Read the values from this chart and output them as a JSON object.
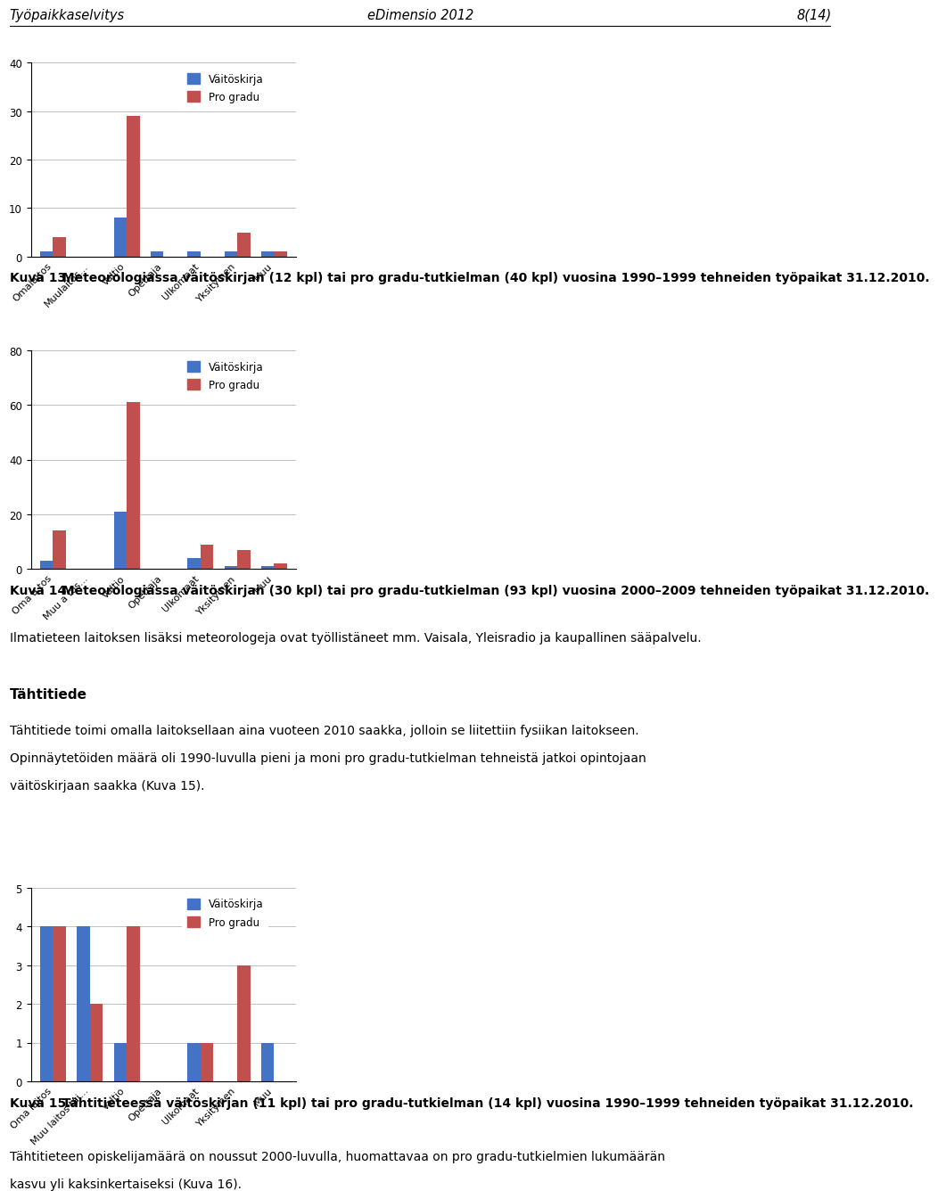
{
  "header_left": "Työpaikkaselvitys",
  "header_center": "eDimensio 2012",
  "header_right": "8(14)",
  "chart1": {
    "categories": [
      "Omalaitos",
      "Muulaitos...",
      "Valtio",
      "Opettaja",
      "Ulkomaat",
      "Yksityinen",
      "Muu"
    ],
    "vastoskirja": [
      1,
      0,
      8,
      1,
      1,
      1,
      1
    ],
    "pro_gradu": [
      4,
      0,
      29,
      0,
      0,
      5,
      1
    ],
    "ylim": [
      0,
      40
    ],
    "yticks": [
      0,
      10,
      20,
      30,
      40
    ]
  },
  "caption1_bold": "Kuva 13.",
  "caption1_rest": " Meteorologiassa väitöskirjan (12 kpl) tai pro gradu-tutkielman (40 kpl) vuosina 1990–1999 tehneiden työpaikat 31.12.2010.",
  "chart2": {
    "categories": [
      "Oma a tos",
      "Muu a tos...",
      "Valtio",
      "Opettaja",
      "Ulkomaat",
      "Yksityinen",
      "Muu"
    ],
    "vastoskirja": [
      3,
      0,
      21,
      0,
      4,
      1,
      1
    ],
    "pro_gradu": [
      14,
      0,
      61,
      0,
      9,
      7,
      2
    ],
    "ylim": [
      0,
      80
    ],
    "yticks": [
      0,
      20,
      40,
      60,
      80
    ]
  },
  "caption2_bold": "Kuva 14.",
  "caption2_rest": " Meteorologiassa väitöskirjan (30 kpl) tai pro gradu-tutkielman (93 kpl) vuosina 2000–2009 tehneiden työpaikat 31.12.2010.",
  "text_after_caption2": "Ilmatieteen laitoksen lisäksi meteorologeja ovat työllistäneet mm. Vaisala, Yleisradio ja kaupallinen sääpalvelu.",
  "heading3": "Tähtitiede",
  "text3_line1": "Tähtitiede toimi omalla laitoksellaan aina vuoteen 2010 saakka, jolloin se liitettiin fysiikan laitokseen.",
  "text3_line2": "Opinnäytetöiden määrä oli 1990-luvulla pieni ja moni pro gradu-tutkielman tehneistä jatkoi opintojaan",
  "text3_line3": "väitöskirjaan saakka (Kuva 15).",
  "chart3": {
    "categories": [
      "Oma laitos",
      "Muu laitos tai...",
      "Valtio",
      "Opettaja",
      "Ulkomaat",
      "Yksityinen",
      "Muu"
    ],
    "vastoskirja": [
      4,
      4,
      1,
      0,
      1,
      0,
      1
    ],
    "pro_gradu": [
      4,
      2,
      4,
      0,
      1,
      3,
      0
    ],
    "ylim": [
      0,
      5
    ],
    "yticks": [
      0,
      1,
      2,
      3,
      4,
      5
    ]
  },
  "caption3_bold": "Kuva 15.",
  "caption3_rest": " Tähtitieteessä väitöskirjan (11 kpl) tai pro gradu-tutkielman (14 kpl) vuosina 1990–1999 tehneiden työpaikat 31.12.2010.",
  "text4_line1": "Tähtitieteen opiskelijamäärä on noussut 2000-luvulla, huomattavaa on pro gradu-tutkielmien lukumäärän",
  "text4_line2": "kasvu yli kaksinkertaiseksi (Kuva 16).",
  "bar_blue": "#4472C4",
  "bar_red": "#C0504D",
  "legend_vastoskirja": "Väitöskirja",
  "legend_pro_gradu": "Pro gradu"
}
